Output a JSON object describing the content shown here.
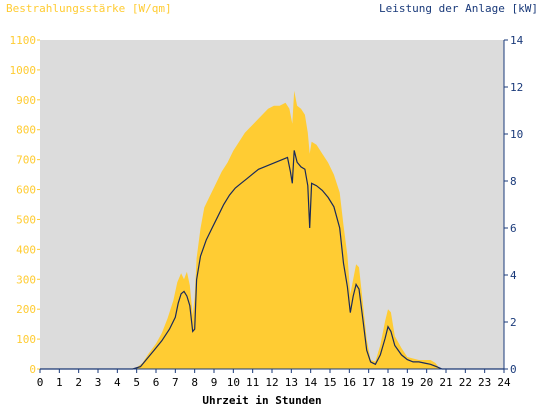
{
  "chart_data": {
    "type": "area",
    "left_axis_title": "Bestrahlungsstärke [W/qm]",
    "right_axis_title": "Leistung der Anlage [kW]",
    "xlabel": "Uhrzeit in Stunden",
    "x_ticks": [
      "0",
      "1",
      "2",
      "3",
      "4",
      "5",
      "6",
      "7",
      "8",
      "9",
      "10",
      "11",
      "12",
      "13",
      "14",
      "15",
      "16",
      "17",
      "18",
      "19",
      "20",
      "21",
      "22",
      "23",
      "24"
    ],
    "y_left_ticks": [
      "0",
      "100",
      "200",
      "300",
      "400",
      "500",
      "600",
      "700",
      "800",
      "900",
      "1000",
      "1100"
    ],
    "y_right_ticks": [
      "0",
      "2",
      "4",
      "6",
      "8",
      "10",
      "12",
      "14"
    ],
    "xlim": [
      0,
      24
    ],
    "ylim_left": [
      0,
      1100
    ],
    "ylim_right": [
      0,
      14
    ],
    "colors": {
      "irradiance_fill": "#ffcc33",
      "power_line": "#1a2a5a",
      "plot_background": "#dcdcdc",
      "left_axis_text": "#ffcc33",
      "right_axis_text": "#1a3a7a",
      "x_axis_text": "#000000"
    },
    "series": [
      {
        "axis": "left",
        "points": [
          [
            0,
            0
          ],
          [
            4.6,
            0
          ],
          [
            5.0,
            5
          ],
          [
            5.3,
            20
          ],
          [
            5.6,
            50
          ],
          [
            6.0,
            85
          ],
          [
            6.3,
            120
          ],
          [
            6.6,
            170
          ],
          [
            6.9,
            230
          ],
          [
            7.1,
            290
          ],
          [
            7.3,
            320
          ],
          [
            7.45,
            300
          ],
          [
            7.6,
            325
          ],
          [
            7.75,
            280
          ],
          [
            7.9,
            180
          ],
          [
            8.0,
            240
          ],
          [
            8.1,
            370
          ],
          [
            8.3,
            470
          ],
          [
            8.5,
            540
          ],
          [
            8.8,
            580
          ],
          [
            9.1,
            620
          ],
          [
            9.4,
            660
          ],
          [
            9.7,
            690
          ],
          [
            10.0,
            730
          ],
          [
            10.3,
            760
          ],
          [
            10.6,
            790
          ],
          [
            10.9,
            810
          ],
          [
            11.2,
            830
          ],
          [
            11.5,
            850
          ],
          [
            11.8,
            870
          ],
          [
            12.1,
            880
          ],
          [
            12.4,
            880
          ],
          [
            12.7,
            890
          ],
          [
            12.9,
            870
          ],
          [
            13.05,
            820
          ],
          [
            13.15,
            930
          ],
          [
            13.3,
            880
          ],
          [
            13.5,
            870
          ],
          [
            13.7,
            850
          ],
          [
            13.85,
            790
          ],
          [
            13.95,
            720
          ],
          [
            14.05,
            760
          ],
          [
            14.3,
            750
          ],
          [
            14.6,
            720
          ],
          [
            14.9,
            690
          ],
          [
            15.2,
            650
          ],
          [
            15.5,
            590
          ],
          [
            15.7,
            480
          ],
          [
            15.9,
            380
          ],
          [
            16.05,
            250
          ],
          [
            16.2,
            300
          ],
          [
            16.35,
            350
          ],
          [
            16.5,
            340
          ],
          [
            16.7,
            220
          ],
          [
            16.9,
            100
          ],
          [
            17.1,
            30
          ],
          [
            17.35,
            25
          ],
          [
            17.6,
            80
          ],
          [
            17.85,
            160
          ],
          [
            18.0,
            200
          ],
          [
            18.15,
            190
          ],
          [
            18.35,
            110
          ],
          [
            18.7,
            70
          ],
          [
            19.0,
            40
          ],
          [
            19.3,
            35
          ],
          [
            19.6,
            30
          ],
          [
            19.9,
            30
          ],
          [
            20.2,
            30
          ],
          [
            20.45,
            20
          ],
          [
            20.7,
            0
          ],
          [
            24,
            0
          ]
        ]
      },
      {
        "axis": "right",
        "points": [
          [
            0,
            0
          ],
          [
            4.8,
            0
          ],
          [
            5.2,
            0.1
          ],
          [
            5.5,
            0.4
          ],
          [
            5.9,
            0.8
          ],
          [
            6.3,
            1.2
          ],
          [
            6.7,
            1.7
          ],
          [
            7.0,
            2.2
          ],
          [
            7.15,
            2.8
          ],
          [
            7.3,
            3.2
          ],
          [
            7.45,
            3.3
          ],
          [
            7.6,
            3.1
          ],
          [
            7.75,
            2.7
          ],
          [
            7.9,
            1.6
          ],
          [
            8.0,
            1.7
          ],
          [
            8.1,
            3.8
          ],
          [
            8.3,
            4.8
          ],
          [
            8.6,
            5.5
          ],
          [
            8.9,
            6.0
          ],
          [
            9.2,
            6.5
          ],
          [
            9.5,
            7.0
          ],
          [
            9.8,
            7.4
          ],
          [
            10.1,
            7.7
          ],
          [
            10.4,
            7.9
          ],
          [
            10.7,
            8.1
          ],
          [
            11.0,
            8.3
          ],
          [
            11.3,
            8.5
          ],
          [
            11.6,
            8.6
          ],
          [
            11.9,
            8.7
          ],
          [
            12.2,
            8.8
          ],
          [
            12.5,
            8.9
          ],
          [
            12.8,
            9.0
          ],
          [
            12.95,
            8.4
          ],
          [
            13.05,
            7.9
          ],
          [
            13.15,
            9.3
          ],
          [
            13.3,
            8.8
          ],
          [
            13.5,
            8.6
          ],
          [
            13.7,
            8.5
          ],
          [
            13.85,
            7.8
          ],
          [
            13.95,
            6.0
          ],
          [
            14.05,
            7.9
          ],
          [
            14.3,
            7.8
          ],
          [
            14.6,
            7.6
          ],
          [
            14.9,
            7.3
          ],
          [
            15.2,
            6.9
          ],
          [
            15.5,
            6.0
          ],
          [
            15.7,
            4.5
          ],
          [
            15.9,
            3.5
          ],
          [
            16.05,
            2.4
          ],
          [
            16.2,
            3.1
          ],
          [
            16.35,
            3.6
          ],
          [
            16.5,
            3.4
          ],
          [
            16.7,
            2.1
          ],
          [
            16.9,
            0.8
          ],
          [
            17.1,
            0.3
          ],
          [
            17.35,
            0.2
          ],
          [
            17.6,
            0.6
          ],
          [
            17.85,
            1.3
          ],
          [
            18.0,
            1.8
          ],
          [
            18.15,
            1.6
          ],
          [
            18.35,
            1.0
          ],
          [
            18.7,
            0.6
          ],
          [
            19.0,
            0.4
          ],
          [
            19.3,
            0.3
          ],
          [
            19.6,
            0.3
          ],
          [
            19.9,
            0.25
          ],
          [
            20.2,
            0.2
          ],
          [
            20.5,
            0.1
          ],
          [
            20.8,
            0
          ],
          [
            24,
            0
          ]
        ]
      }
    ]
  }
}
